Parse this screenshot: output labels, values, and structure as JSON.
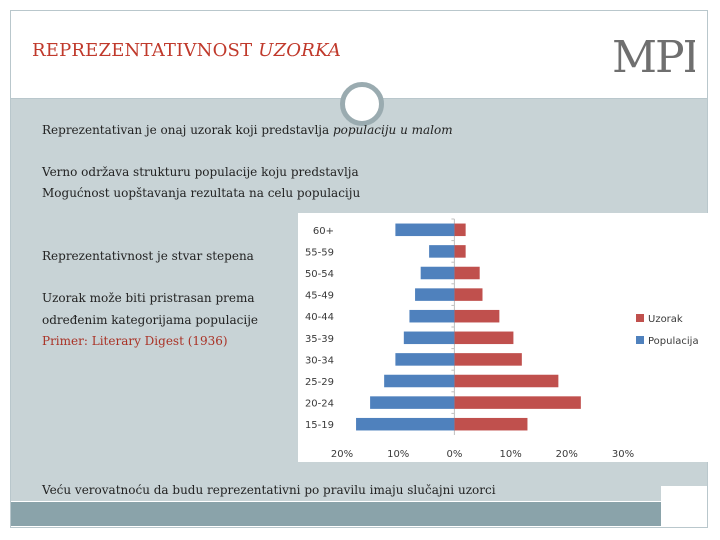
{
  "slide": {
    "title_main": "REPREZENTATIVNOST",
    "title_rest": " UZORKA",
    "logo_text": "MPI",
    "lines": {
      "l1_start": "Reprezentativan je onaj uzorak koji predstavlja ",
      "l1_italic": "populaciju u malom",
      "l2": "Verno održava strukturu populacije koju predstavlja",
      "l3": "Mogućnost uopštavanja rezultata na celu populaciju",
      "l4": "Reprezentativnost je stvar stepena",
      "l5": "Uzorak može biti pristrasan prema",
      "l6": "određenim kategorijama populacije",
      "l7": "Primer: Literary Digest (1936)",
      "l8": "Veću verovatnoću da budu reprezentativni po pravilu imaju slučajni uzorci"
    }
  },
  "colors": {
    "uzorak": "#c0504d",
    "populacija": "#4f81bd",
    "title": "#c0392b"
  },
  "chart_data": {
    "type": "bar",
    "orientation": "horizontal",
    "categories": [
      "60+",
      "55-59",
      "50-54",
      "45-49",
      "40-44",
      "35-39",
      "30-34",
      "25-29",
      "20-24",
      "15-19"
    ],
    "series": [
      {
        "name": "Uzorak",
        "values": [
          2,
          2,
          4.5,
          5,
          8,
          10.5,
          12,
          18.5,
          22.5,
          13
        ]
      },
      {
        "name": "Populacija",
        "values": [
          -10.5,
          -4.5,
          -6,
          -7,
          -8,
          -9,
          -10.5,
          -12.5,
          -15,
          -17.5
        ]
      }
    ],
    "x_ticks": [
      "20%",
      "10%",
      "0%",
      "10%",
      "20%",
      "30%"
    ],
    "xlim": [
      -20,
      30
    ],
    "legend": "right"
  }
}
